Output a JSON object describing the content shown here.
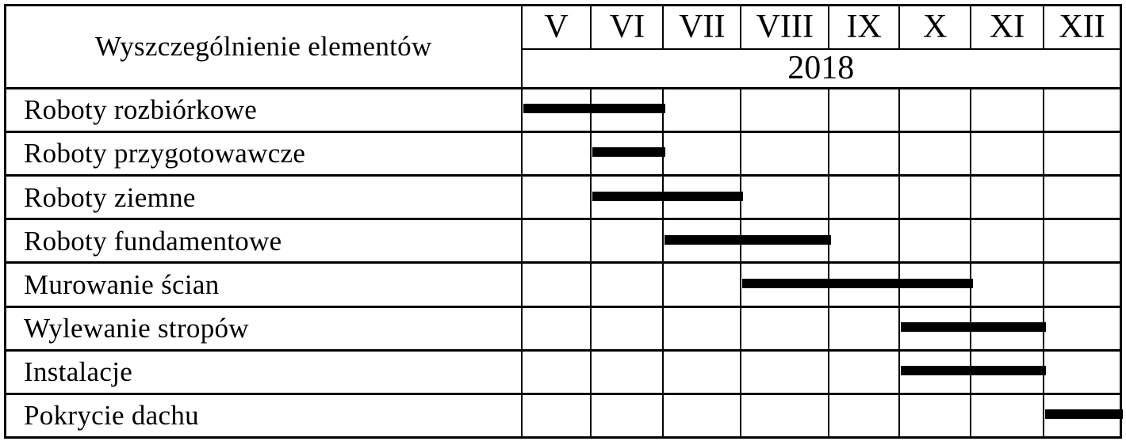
{
  "header": {
    "label_column_title": "Wyszczególnienie elementów",
    "year": "2018",
    "months": [
      "V",
      "VI",
      "VII",
      "VIII",
      "IX",
      "X",
      "XI",
      "XII"
    ]
  },
  "colors": {
    "bar": "#000000",
    "border": "#000000",
    "background": "#ffffff",
    "text": "#000000"
  },
  "chart_data": {
    "type": "bar",
    "subtype": "gantt",
    "title": "",
    "x_axis": {
      "year_label": "2018",
      "categories": [
        "V",
        "VI",
        "VII",
        "VIII",
        "IX",
        "X",
        "XI",
        "XII"
      ]
    },
    "row_header": "Wyszczególnienie elementów",
    "tasks": [
      {
        "name": "Roboty rozbiórkowe",
        "start_month": "V",
        "end_month": "VI",
        "start_index": 0,
        "duration_months": 2
      },
      {
        "name": "Roboty przygotowawcze",
        "start_month": "VI",
        "end_month": "VI",
        "start_index": 1,
        "duration_months": 1
      },
      {
        "name": "Roboty ziemne",
        "start_month": "VI",
        "end_month": "VII",
        "start_index": 1,
        "duration_months": 2
      },
      {
        "name": "Roboty fundamentowe",
        "start_month": "VII",
        "end_month": "VIII",
        "start_index": 2,
        "duration_months": 2
      },
      {
        "name": "Murowanie ścian",
        "start_month": "VIII",
        "end_month": "X",
        "start_index": 3,
        "duration_months": 3
      },
      {
        "name": "Wylewanie stropów",
        "start_month": "X",
        "end_month": "XI",
        "start_index": 5,
        "duration_months": 2
      },
      {
        "name": "Instalacje",
        "start_month": "X",
        "end_month": "XI",
        "start_index": 5,
        "duration_months": 2
      },
      {
        "name": "Pokrycie dachu",
        "start_month": "XII",
        "end_month": "XII",
        "start_index": 7,
        "duration_months": 1
      }
    ]
  }
}
